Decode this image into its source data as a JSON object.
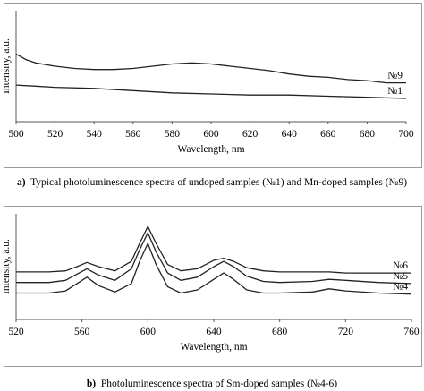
{
  "chart_data": [
    {
      "type": "line",
      "panel_letter": "a)",
      "caption": "Typical photoluminescence spectra of undoped samples (№1) and Mn-doped samples (№9)",
      "xlabel": "Wavelength, nm",
      "ylabel": "Intensity, a.u.",
      "xlim": [
        500,
        700
      ],
      "ylim": [
        0,
        1
      ],
      "x_ticks": [
        "500",
        "520",
        "540",
        "560",
        "580",
        "600",
        "620",
        "640",
        "660",
        "680",
        "700"
      ],
      "y_ticks_shown": false,
      "grid": false,
      "legend": "inline labels at right end",
      "series": [
        {
          "name": "№9",
          "x": [
            500,
            505,
            510,
            520,
            530,
            540,
            550,
            560,
            570,
            580,
            590,
            600,
            610,
            620,
            630,
            640,
            650,
            660,
            670,
            680,
            690,
            700
          ],
          "values": [
            0.61,
            0.56,
            0.53,
            0.5,
            0.48,
            0.47,
            0.47,
            0.48,
            0.5,
            0.52,
            0.53,
            0.52,
            0.5,
            0.48,
            0.46,
            0.43,
            0.41,
            0.4,
            0.38,
            0.37,
            0.35,
            0.35
          ]
        },
        {
          "name": "№1",
          "x": [
            500,
            510,
            520,
            540,
            560,
            580,
            600,
            620,
            640,
            660,
            680,
            700
          ],
          "values": [
            0.33,
            0.32,
            0.31,
            0.3,
            0.28,
            0.26,
            0.25,
            0.24,
            0.24,
            0.23,
            0.22,
            0.21
          ]
        }
      ]
    },
    {
      "type": "line",
      "panel_letter": "b)",
      "caption": "Photoluminescence spectra of Sm-doped samples (№4-6)",
      "xlabel": "Wavelength, nm",
      "ylabel": "Intensity, a.u.",
      "xlim": [
        520,
        760
      ],
      "ylim": [
        0,
        1
      ],
      "x_ticks": [
        "520",
        "560",
        "600",
        "640",
        "680",
        "720",
        "760"
      ],
      "y_ticks_shown": false,
      "grid": false,
      "legend": "inline labels at right end",
      "series": [
        {
          "name": "№6",
          "x": [
            520,
            540,
            550,
            557,
            563,
            570,
            580,
            590,
            595,
            600,
            605,
            612,
            620,
            630,
            640,
            646,
            652,
            660,
            670,
            680,
            700,
            710,
            720,
            740,
            760
          ],
          "values": [
            0.45,
            0.45,
            0.46,
            0.5,
            0.54,
            0.5,
            0.46,
            0.55,
            0.72,
            0.88,
            0.72,
            0.52,
            0.46,
            0.48,
            0.56,
            0.58,
            0.55,
            0.49,
            0.46,
            0.45,
            0.45,
            0.45,
            0.44,
            0.44,
            0.44
          ]
        },
        {
          "name": "№5",
          "x": [
            520,
            540,
            550,
            557,
            563,
            570,
            580,
            590,
            595,
            600,
            605,
            612,
            620,
            630,
            640,
            646,
            652,
            660,
            670,
            680,
            700,
            710,
            720,
            740,
            760
          ],
          "values": [
            0.35,
            0.35,
            0.37,
            0.43,
            0.48,
            0.42,
            0.37,
            0.48,
            0.66,
            0.82,
            0.64,
            0.44,
            0.37,
            0.4,
            0.5,
            0.55,
            0.5,
            0.41,
            0.36,
            0.35,
            0.36,
            0.38,
            0.37,
            0.35,
            0.34
          ]
        },
        {
          "name": "№4",
          "x": [
            520,
            540,
            550,
            557,
            563,
            570,
            580,
            590,
            595,
            600,
            605,
            612,
            620,
            630,
            640,
            646,
            652,
            660,
            670,
            680,
            700,
            710,
            720,
            740,
            760
          ],
          "values": [
            0.25,
            0.25,
            0.27,
            0.34,
            0.4,
            0.32,
            0.26,
            0.34,
            0.55,
            0.72,
            0.52,
            0.31,
            0.25,
            0.28,
            0.38,
            0.44,
            0.38,
            0.28,
            0.25,
            0.25,
            0.26,
            0.29,
            0.27,
            0.25,
            0.24
          ]
        }
      ]
    }
  ]
}
